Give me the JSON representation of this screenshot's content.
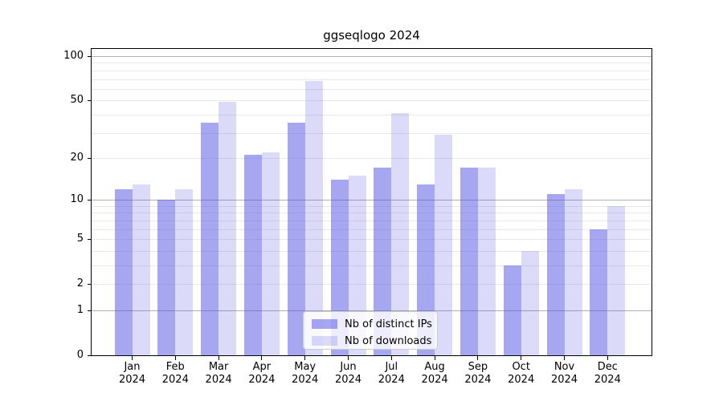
{
  "chart_data": {
    "type": "bar",
    "title": "ggseqlogo 2024",
    "year_label": "2024",
    "categories": [
      "Jan",
      "Feb",
      "Mar",
      "Apr",
      "May",
      "Jun",
      "Jul",
      "Aug",
      "Sep",
      "Oct",
      "Nov",
      "Dec"
    ],
    "series": [
      {
        "name": "Nb of distinct IPs",
        "color": "#4d4de3",
        "alpha": 0.5,
        "values": [
          12,
          10,
          35,
          21,
          35,
          14,
          17,
          13,
          17,
          3,
          11,
          6
        ]
      },
      {
        "name": "Nb of downloads",
        "color": "#4d4de3",
        "alpha": 0.2,
        "values": [
          13,
          12,
          49,
          22,
          68,
          15,
          41,
          29,
          17,
          4,
          12,
          9
        ]
      }
    ],
    "axis": {
      "yscale": "log1p",
      "ylim": [
        0,
        113
      ],
      "yticks": [
        100,
        50,
        20,
        10,
        5,
        2,
        1,
        0
      ],
      "major_gridlines": [
        1,
        10,
        100
      ],
      "minor_gridlines": [
        2,
        3,
        4,
        5,
        6,
        7,
        8,
        9,
        20,
        30,
        40,
        50,
        60,
        70,
        80,
        90
      ],
      "grid": true
    },
    "legend": {
      "position": "lower center",
      "labels": [
        "Nb of distinct IPs",
        "Nb of downloads"
      ]
    },
    "colors": {
      "bar_base": "#4d4de3",
      "distinct_ips_apparent": "#a6a6f1",
      "downloads_apparent": "#dbdbf9",
      "major_grid": "#b0b0b0",
      "minor_grid": "#e9e9e9",
      "axis": "#000000",
      "legend_border": "#cccccc",
      "background": "#ffffff"
    }
  }
}
